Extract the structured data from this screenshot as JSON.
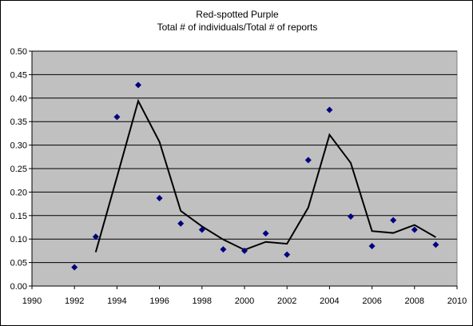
{
  "chart_data": {
    "type": "scatter",
    "title": "Red-spotted Purple",
    "subtitle": "Total # of individuals/Total # of reports",
    "xlabel": "",
    "ylabel": "",
    "xlim": [
      1990,
      2010
    ],
    "ylim": [
      0,
      0.5
    ],
    "x_ticks": [
      "1990",
      "1992",
      "1994",
      "1996",
      "1998",
      "2000",
      "2002",
      "2004",
      "2006",
      "2008",
      "2010"
    ],
    "y_ticks": [
      "0.00",
      "0.05",
      "0.10",
      "0.15",
      "0.20",
      "0.25",
      "0.30",
      "0.35",
      "0.40",
      "0.45",
      "0.50"
    ],
    "grid": true,
    "colors": {
      "plot_background": "#c0c0c0",
      "points": "#000080",
      "line": "#000000",
      "grid": "#000000"
    },
    "series": [
      {
        "type": "scatter",
        "marker": "diamond",
        "x": [
          1992,
          1993,
          1994,
          1995,
          1996,
          1997,
          1998,
          1999,
          2000,
          2001,
          2002,
          2003,
          2004,
          2005,
          2006,
          2007,
          2008,
          2009
        ],
        "y": [
          0.04,
          0.105,
          0.36,
          0.428,
          0.187,
          0.133,
          0.12,
          0.078,
          0.075,
          0.112,
          0.067,
          0.268,
          0.375,
          0.148,
          0.085,
          0.14,
          0.12,
          0.088
        ]
      },
      {
        "type": "line",
        "x": [
          1993,
          1994,
          1995,
          1996,
          1997,
          1998,
          1999,
          2000,
          2001,
          2002,
          2003,
          2004,
          2005,
          2006,
          2007,
          2008,
          2009
        ],
        "y": [
          0.072,
          0.232,
          0.394,
          0.307,
          0.16,
          0.127,
          0.099,
          0.077,
          0.094,
          0.09,
          0.167,
          0.322,
          0.262,
          0.117,
          0.113,
          0.13,
          0.104
        ]
      }
    ]
  }
}
